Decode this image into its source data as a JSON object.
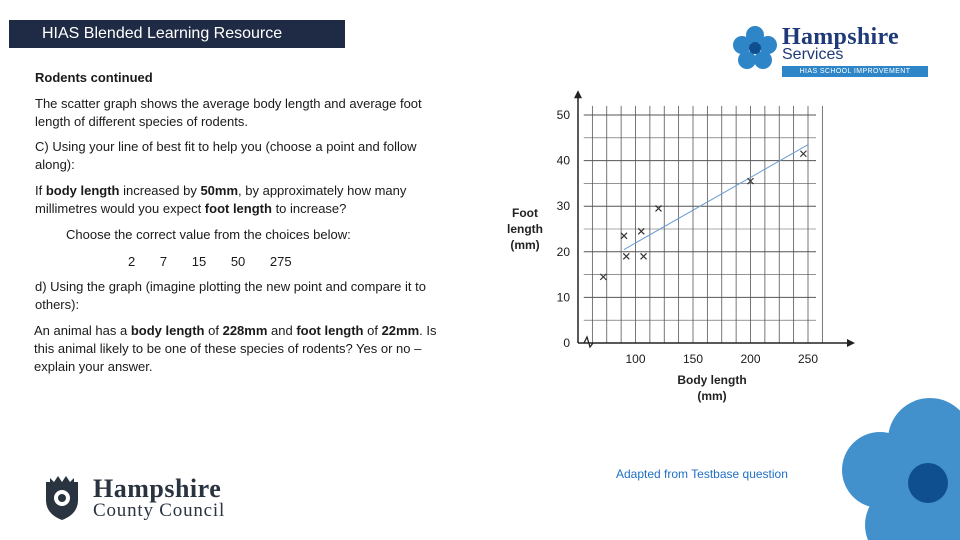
{
  "header": {
    "title": "HIAS Blended Learning Resource"
  },
  "logos": {
    "services_title": "Hampshire",
    "services_sub": "Services",
    "services_bar": "HIAS SCHOOL IMPROVEMENT",
    "council_line1": "Hampshire",
    "council_line2": "County Council"
  },
  "content": {
    "heading": "Rodents continued",
    "intro": "The scatter graph shows the average body length and average foot length of different species of rodents.",
    "question_c": "C) Using your line of best fit to help you (choose a point and follow along):",
    "question_c_detail": {
      "p1": "If ",
      "b1": "body length",
      "p2": " increased by ",
      "b2": "50mm",
      "p3": ", by approximately how many millimetres would you expect ",
      "b3": "foot length",
      "p4": " to increase?"
    },
    "choose_prompt": "Choose the correct value from the choices below:",
    "choices": [
      "2",
      "7",
      "15",
      "50",
      "275"
    ],
    "question_d": "d) Using the graph (imagine plotting the new point and compare it to others):",
    "question_d_detail": {
      "p1": " An animal has a ",
      "b1": "body length",
      "p2": " of ",
      "b2": "228mm",
      "p3": " and ",
      "b3": "foot length",
      "p4": " of ",
      "b4": "22mm",
      "p5": ". Is this animal likely to be one of these species of rodents? Yes or no – explain your answer."
    },
    "credit": "Adapted from Testbase question"
  },
  "chart_data": {
    "type": "scatter",
    "title": "",
    "xlabel": "Body length (mm)",
    "ylabel": "Foot length (mm)",
    "xlim": [
      50,
      250
    ],
    "ylim": [
      0,
      50
    ],
    "x_axis_break": true,
    "x_ticks": [
      100,
      150,
      200,
      250
    ],
    "y_ticks": [
      0,
      10,
      20,
      30,
      40,
      50
    ],
    "grid": true,
    "marker": "×",
    "series": [
      {
        "x": [
          72,
          90,
          92,
          105,
          107,
          120,
          200,
          246
        ],
        "y": [
          14.5,
          23.5,
          19,
          24.5,
          19,
          29.5,
          35.5,
          41.5
        ]
      }
    ],
    "best_fit_line": {
      "x1": 90,
      "y1": 20.5,
      "x2": 250,
      "y2": 43.5,
      "color": "#6a9bd1"
    },
    "colors": {
      "grid": "#555555",
      "points": "#333333",
      "axes": "#222222"
    }
  }
}
